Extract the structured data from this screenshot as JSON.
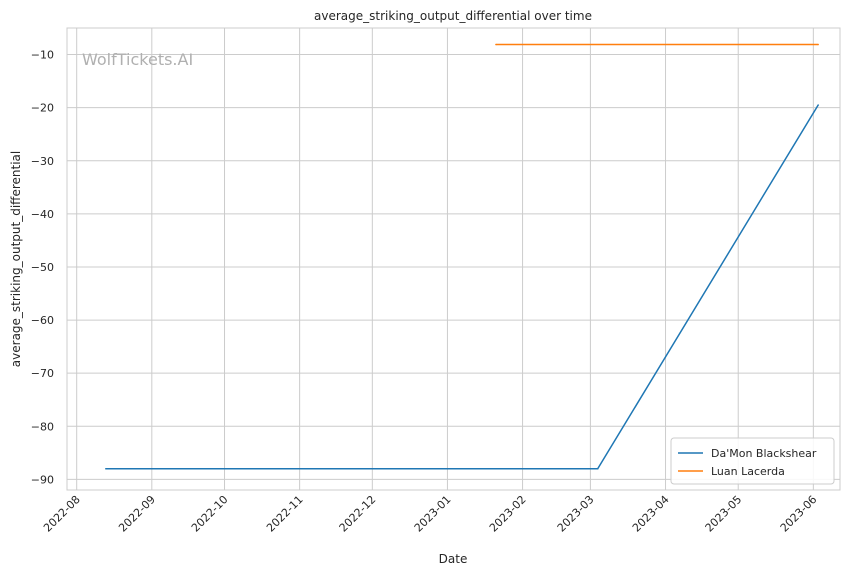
{
  "chart_data": {
    "type": "line",
    "title": "average_striking_output_differential over time",
    "xlabel": "Date",
    "ylabel": "average_striking_output_differential",
    "watermark": "WolfTickets.AI",
    "x_ticks": [
      "2022-08",
      "2022-09",
      "2022-10",
      "2022-11",
      "2022-12",
      "2023-01",
      "2023-02",
      "2023-03",
      "2023-04",
      "2023-05",
      "2023-06"
    ],
    "y_ticks": [
      -10,
      -20,
      -30,
      -40,
      -50,
      -60,
      -70,
      -80,
      -90
    ],
    "ylim": [
      -92,
      -5
    ],
    "xlim": [
      "2022-07-28",
      "2023-06-12"
    ],
    "grid": true,
    "legend_position": "bottom-right",
    "series": [
      {
        "name": "Da'Mon Blackshear",
        "color": "#1f77b4",
        "points": [
          {
            "x": "2022-08-13",
            "y": -88
          },
          {
            "x": "2023-03-04",
            "y": -88
          },
          {
            "x": "2023-06-03",
            "y": -19.5
          }
        ]
      },
      {
        "name": "Luan Lacerda",
        "color": "#ff7f0e",
        "points": [
          {
            "x": "2023-01-21",
            "y": -8.1
          },
          {
            "x": "2023-06-03",
            "y": -8.1
          }
        ]
      }
    ]
  }
}
